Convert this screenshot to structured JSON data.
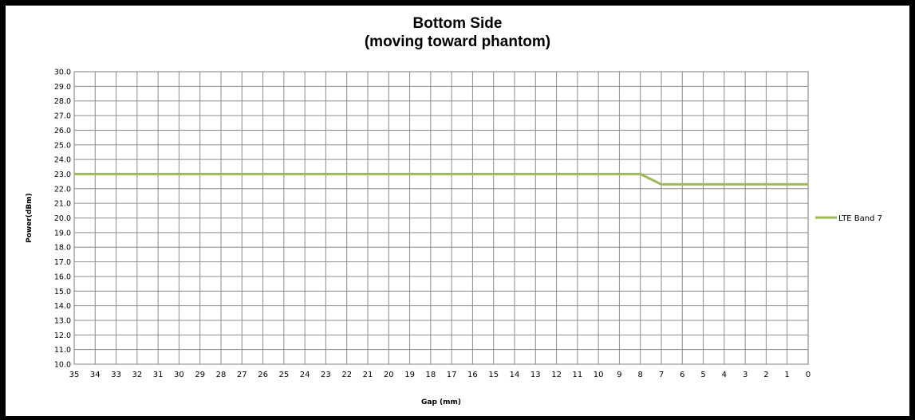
{
  "chart_data": {
    "type": "line",
    "title": [
      "Bottom Side",
      "(moving toward phantom)"
    ],
    "xlabel": "Gap (mm)",
    "ylabel": "Power(dBm)",
    "x": [
      35,
      34,
      33,
      32,
      31,
      30,
      29,
      28,
      27,
      26,
      25,
      24,
      23,
      22,
      21,
      20,
      19,
      18,
      17,
      16,
      15,
      14,
      13,
      12,
      11,
      10,
      9,
      8,
      7,
      6,
      5,
      4,
      3,
      2,
      1,
      0
    ],
    "ylim": [
      10.0,
      30.0
    ],
    "yticks": [
      "10.0",
      "11.0",
      "12.0",
      "13.0",
      "14.0",
      "15.0",
      "16.0",
      "17.0",
      "18.0",
      "19.0",
      "20.0",
      "21.0",
      "22.0",
      "23.0",
      "24.0",
      "25.0",
      "26.0",
      "27.0",
      "28.0",
      "29.0",
      "30.0"
    ],
    "grid": true,
    "legend_position": "right",
    "series": [
      {
        "name": "LTE Band 7",
        "color": "#9bbb59",
        "values": [
          23.0,
          23.0,
          23.0,
          23.0,
          23.0,
          23.0,
          23.0,
          23.0,
          23.0,
          23.0,
          23.0,
          23.0,
          23.0,
          23.0,
          23.0,
          23.0,
          23.0,
          23.0,
          23.0,
          23.0,
          23.0,
          23.0,
          23.0,
          23.0,
          23.0,
          23.0,
          23.0,
          23.0,
          22.3,
          22.3,
          22.3,
          22.3,
          22.3,
          22.3,
          22.3,
          22.3
        ]
      }
    ]
  }
}
